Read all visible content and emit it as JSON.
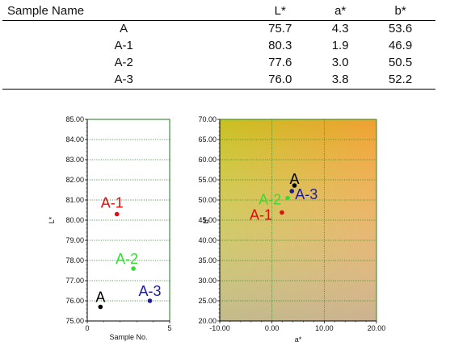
{
  "table": {
    "headers": [
      "Sample Name",
      "L*",
      "a*",
      "b*"
    ],
    "rows": [
      [
        "A",
        "75.7",
        "4.3",
        "53.6"
      ],
      [
        "A-1",
        "80.3",
        "1.9",
        "46.9"
      ],
      [
        "A-2",
        "77.6",
        "3.0",
        "50.5"
      ],
      [
        "A-3",
        "76.0",
        "3.8",
        "52.2"
      ]
    ]
  },
  "chart_data": [
    {
      "type": "scatter",
      "xlabel": "Sample No.",
      "ylabel": "L*",
      "xlim": [
        0,
        5
      ],
      "ylim": [
        75,
        85
      ],
      "x_ticks": [
        0,
        5
      ],
      "x_tick_labels": [
        "0",
        "5"
      ],
      "y_ticks": [
        75,
        76,
        77,
        78,
        79,
        80,
        81,
        82,
        83,
        84,
        85
      ],
      "y_tick_labels": [
        "75.00",
        "76.00",
        "77.00",
        "78.00",
        "79.00",
        "80.00",
        "81.00",
        "82.00",
        "83.00",
        "84.00",
        "85.00"
      ],
      "grid": true,
      "points": [
        {
          "label": "A",
          "x": 0.8,
          "y": 75.7,
          "color": "#000000"
        },
        {
          "label": "A-1",
          "x": 1.8,
          "y": 80.3,
          "color": "#e01010"
        },
        {
          "label": "A-2",
          "x": 2.8,
          "y": 77.6,
          "color": "#33dd33"
        },
        {
          "label": "A-3",
          "x": 3.8,
          "y": 76.0,
          "color": "#1c1ca0"
        }
      ]
    },
    {
      "type": "scatter",
      "xlabel": "a*",
      "ylabel": "b*",
      "xlim": [
        -10,
        20
      ],
      "ylim": [
        20,
        70
      ],
      "x_ticks": [
        -10,
        0,
        10,
        20
      ],
      "x_tick_labels": [
        "-10.00",
        "0.00",
        "10.00",
        "20.00"
      ],
      "y_ticks": [
        20,
        25,
        30,
        35,
        40,
        45,
        50,
        55,
        60,
        65,
        70
      ],
      "y_tick_labels": [
        "20.00",
        "25.00",
        "30.00",
        "35.00",
        "40.00",
        "45.00",
        "50.00",
        "55.00",
        "60.00",
        "65.00",
        "70.00"
      ],
      "grid": true,
      "background": "gradient",
      "points": [
        {
          "label": "A",
          "x": 4.3,
          "y": 53.6,
          "color": "#000000"
        },
        {
          "label": "A-1",
          "x": 1.9,
          "y": 46.9,
          "color": "#e01010"
        },
        {
          "label": "A-2",
          "x": 3.0,
          "y": 50.5,
          "color": "#33dd33"
        },
        {
          "label": "A-3",
          "x": 3.8,
          "y": 52.2,
          "color": "#1c1ca0"
        }
      ]
    }
  ]
}
